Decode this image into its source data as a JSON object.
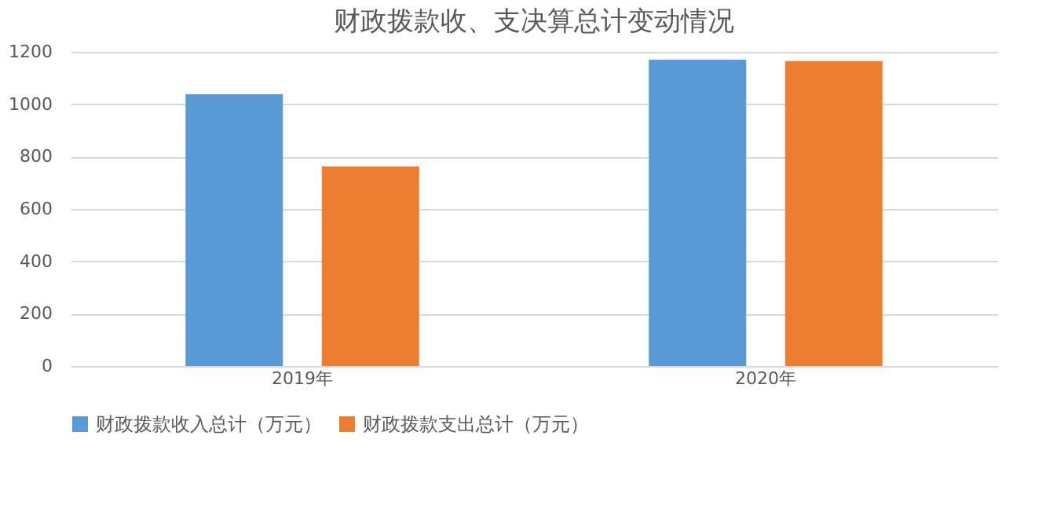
{
  "chart_data": {
    "type": "bar",
    "title": "财政拨款收、支决算总计变动情况",
    "categories": [
      "2019年",
      "2020年"
    ],
    "series": [
      {
        "name": "财政拨款收入总计（万元）",
        "color": "#5b9bd5",
        "values": [
          1038,
          1170
        ]
      },
      {
        "name": "财政拨款支出总计（万元）",
        "color": "#ed7d31",
        "values": [
          762,
          1165
        ]
      }
    ],
    "ylim": [
      0,
      1200
    ],
    "yticks": [
      0,
      200,
      400,
      600,
      800,
      1000,
      1200
    ],
    "grid": "y",
    "legend": "bottom"
  }
}
